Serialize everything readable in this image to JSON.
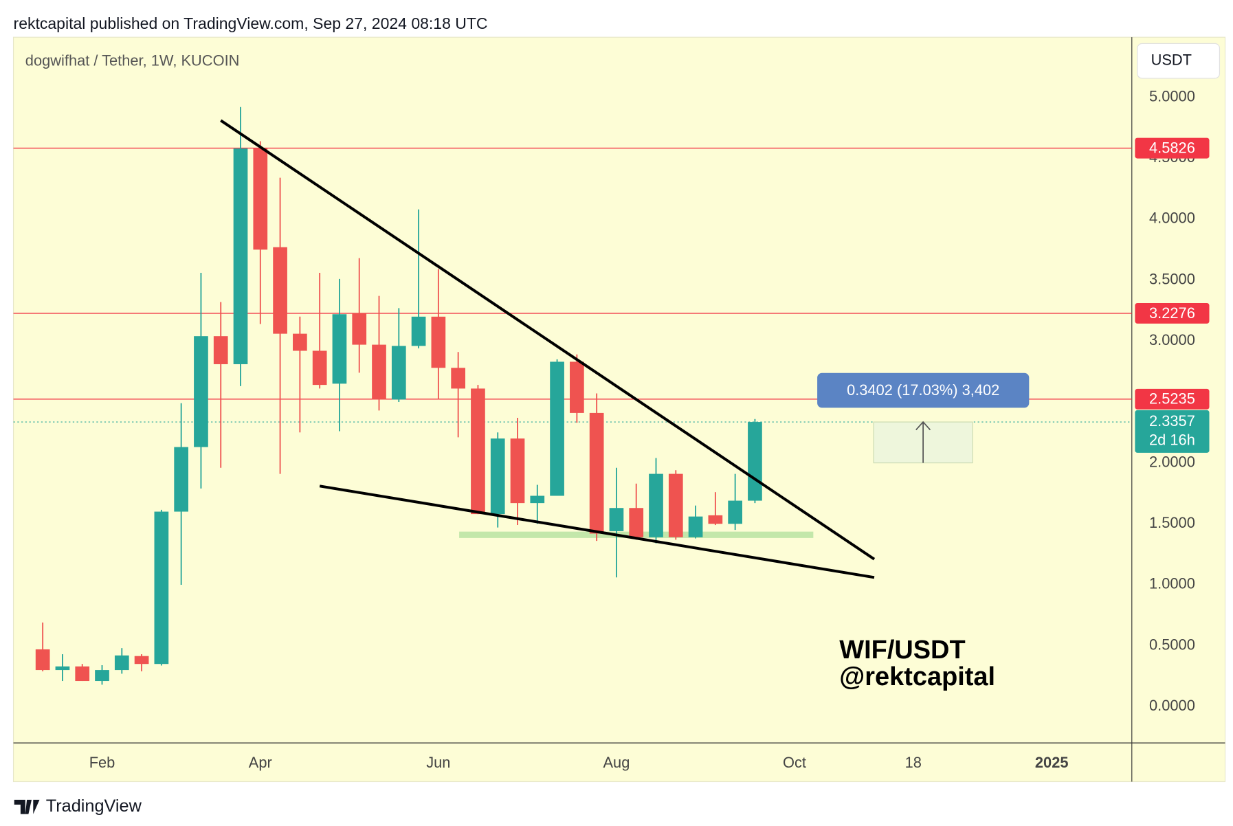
{
  "header": "rektcapital published on TradingView.com, Sep 27, 2024 08:18 UTC",
  "footer": "TradingView",
  "chart_data": {
    "type": "candlestick",
    "title": "dogwifhat / Tether, 1W, KUCOIN",
    "y_axis_label": "USDT",
    "annotation": [
      "WIF/USDT",
      "@rektcapital"
    ],
    "x": [
      0,
      1,
      2,
      3,
      4,
      5,
      6,
      7,
      8,
      9,
      10,
      11,
      12,
      13,
      14,
      15,
      16,
      17,
      18,
      19,
      20,
      21,
      22,
      23,
      24,
      25,
      26,
      27,
      28,
      29,
      30,
      31,
      32,
      33,
      34,
      35,
      36
    ],
    "open": [
      0.47,
      0.3,
      0.33,
      0.21,
      0.3,
      0.415,
      0.35,
      1.6,
      2.13,
      3.04,
      2.81,
      4.58,
      3.77,
      3.06,
      2.92,
      2.65,
      3.23,
      2.97,
      2.52,
      2.96,
      3.2,
      2.78,
      2.61,
      1.58,
      2.2,
      1.67,
      1.73,
      2.83,
      2.41,
      1.44,
      1.63,
      1.39,
      1.91,
      1.39,
      1.57,
      1.5,
      1.69
    ],
    "high": [
      0.69,
      0.43,
      0.35,
      0.34,
      0.48,
      0.43,
      1.615,
      2.49,
      3.56,
      3.32,
      4.92,
      4.64,
      4.34,
      3.2,
      3.56,
      3.51,
      3.68,
      3.37,
      3.27,
      4.08,
      3.59,
      2.91,
      2.64,
      2.25,
      2.37,
      1.82,
      2.85,
      2.89,
      2.57,
      1.96,
      1.83,
      2.04,
      1.94,
      1.65,
      1.76,
      1.91,
      2.36
    ],
    "low": [
      0.29,
      0.21,
      0.21,
      0.18,
      0.27,
      0.29,
      0.337,
      1.0,
      1.79,
      1.96,
      2.63,
      3.14,
      1.91,
      2.25,
      2.61,
      2.26,
      2.74,
      2.43,
      2.5,
      2.94,
      2.52,
      2.21,
      1.58,
      1.47,
      1.49,
      1.5,
      1.73,
      2.33,
      1.36,
      1.06,
      1.37,
      1.34,
      1.37,
      1.38,
      1.49,
      1.45,
      1.67
    ],
    "close": [
      0.3,
      0.33,
      0.21,
      0.3,
      0.42,
      0.35,
      1.6,
      2.13,
      3.04,
      2.81,
      4.58,
      3.75,
      3.06,
      2.92,
      2.64,
      3.22,
      2.97,
      2.52,
      2.96,
      3.2,
      2.78,
      2.61,
      1.58,
      2.2,
      1.67,
      1.73,
      2.83,
      2.41,
      1.42,
      1.63,
      1.39,
      1.91,
      1.39,
      1.56,
      1.5,
      1.69,
      2.3357
    ],
    "up_color": "#26a69a",
    "down_color": "#ef5350",
    "xlim": [
      -1.48,
      55.05
    ],
    "xticks": [
      {
        "value": 3,
        "label": "Feb"
      },
      {
        "value": 11,
        "label": "Apr"
      },
      {
        "value": 20,
        "label": "Jun"
      },
      {
        "value": 29,
        "label": "Aug"
      },
      {
        "value": 38,
        "label": "Oct"
      },
      {
        "value": 44,
        "label": "18"
      },
      {
        "value": 51,
        "label": "2025"
      }
    ],
    "ylim": [
      -0.298,
      5.493
    ],
    "yticks": [
      {
        "value": 0,
        "label": "0.0000"
      },
      {
        "value": 0.5,
        "label": "0.5000"
      },
      {
        "value": 1,
        "label": "1.0000"
      },
      {
        "value": 1.5,
        "label": "1.5000"
      },
      {
        "value": 2,
        "label": "2.0000"
      },
      {
        "value": 2.5,
        "label": "2.5000"
      },
      {
        "value": 3,
        "label": "3.0000"
      },
      {
        "value": 3.5,
        "label": "3.5000"
      },
      {
        "value": 4,
        "label": "4.0000"
      },
      {
        "value": 4.5,
        "label": "4.5000"
      },
      {
        "value": 5,
        "label": "5.0000"
      }
    ],
    "levels": [
      4.5826,
      3.2276,
      2.5235
    ],
    "level_color": "#f23645",
    "last_price": 2.3357,
    "countdown": "2d 16h",
    "trendlines": [
      {
        "x": [
          9,
          42.03
        ],
        "y": [
          4.81,
          1.21
        ]
      },
      {
        "x": [
          14,
          42.03
        ],
        "y": [
          1.81,
          1.06
        ]
      }
    ],
    "support_zone": {
      "x": [
        21.05,
        38.95
      ],
      "y": 1.41
    },
    "measure": {
      "x": [
        42,
        47
      ],
      "y": [
        2.0,
        2.3357
      ],
      "label": "0.3402 (17.03%) 3,402"
    }
  }
}
